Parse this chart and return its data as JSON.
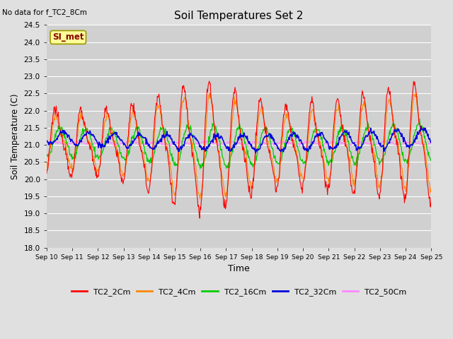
{
  "title": "Soil Temperatures Set 2",
  "subtitle": "No data for f_TC2_8Cm",
  "xlabel": "Time",
  "ylabel": "Soil Temperature (C)",
  "ylim": [
    18.0,
    24.5
  ],
  "yticks": [
    18.0,
    18.5,
    19.0,
    19.5,
    20.0,
    20.5,
    21.0,
    21.5,
    22.0,
    22.5,
    23.0,
    23.5,
    24.0,
    24.5
  ],
  "xtick_labels": [
    "Sep 10",
    "Sep 11",
    "Sep 12",
    "Sep 13",
    "Sep 14",
    "Sep 15",
    "Sep 16",
    "Sep 17",
    "Sep 18",
    "Sep 19",
    "Sep 20",
    "Sep 21",
    "Sep 22",
    "Sep 23",
    "Sep 24",
    "Sep 25"
  ],
  "legend_entries": [
    "TC2_2Cm",
    "TC2_4Cm",
    "TC2_16Cm",
    "TC2_32Cm",
    "TC2_50Cm"
  ],
  "line_colors": [
    "#ff0000",
    "#ff8800",
    "#00cc00",
    "#0000dd",
    "#ff88ff"
  ],
  "bg_color": "#e0e0e0",
  "plot_bg_color": "#d0d0d0",
  "si_met_label": "SI_met",
  "si_met_bg": "#ffff99",
  "si_met_border": "#999900",
  "n_days": 15,
  "n_pts_per_day": 48
}
